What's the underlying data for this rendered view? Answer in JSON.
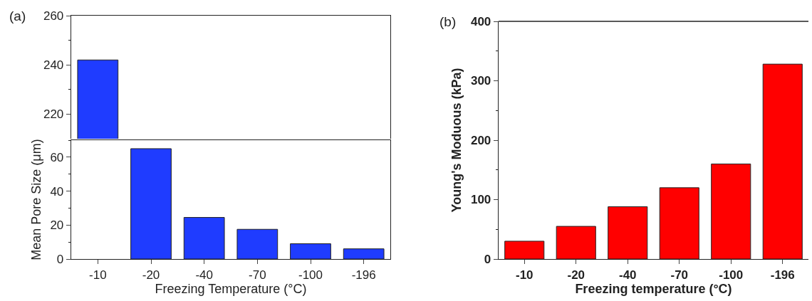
{
  "chart_data": [
    {
      "type": "bar",
      "title": "(a)",
      "categories": [
        "-10",
        "-20",
        "-40",
        "-70",
        "-100",
        "-196"
      ],
      "values": [
        242,
        null,
        null,
        null,
        null,
        null
      ],
      "color": "#1f3cff",
      "ylim": [
        210,
        260
      ],
      "yticks": [
        220,
        240,
        260
      ],
      "tick_labels": "y"
    },
    {
      "type": "bar",
      "categories": [
        "-10",
        "-20",
        "-40",
        "-70",
        "-100",
        "-196"
      ],
      "values": [
        null,
        65,
        24.5,
        17.5,
        9,
        6
      ],
      "color": "#1f3cff",
      "ylim": [
        0,
        70
      ],
      "yticks": [
        0,
        20,
        40,
        60
      ],
      "xlabel": "Freezing Temperature (°C)",
      "ylabel": "Mean Pore Size (μm)"
    },
    {
      "type": "bar",
      "title": "(b)",
      "categories": [
        "-10",
        "-20",
        "-40",
        "-70",
        "-100",
        "-196"
      ],
      "values": [
        30,
        55,
        88,
        120,
        160,
        328
      ],
      "color": "#ff0000",
      "ylim": [
        0,
        400
      ],
      "yticks": [
        0,
        100,
        200,
        300,
        400
      ],
      "xlabel": "Freezing temperature (°C)",
      "ylabel": "Young's Moduous (kPa)"
    }
  ]
}
